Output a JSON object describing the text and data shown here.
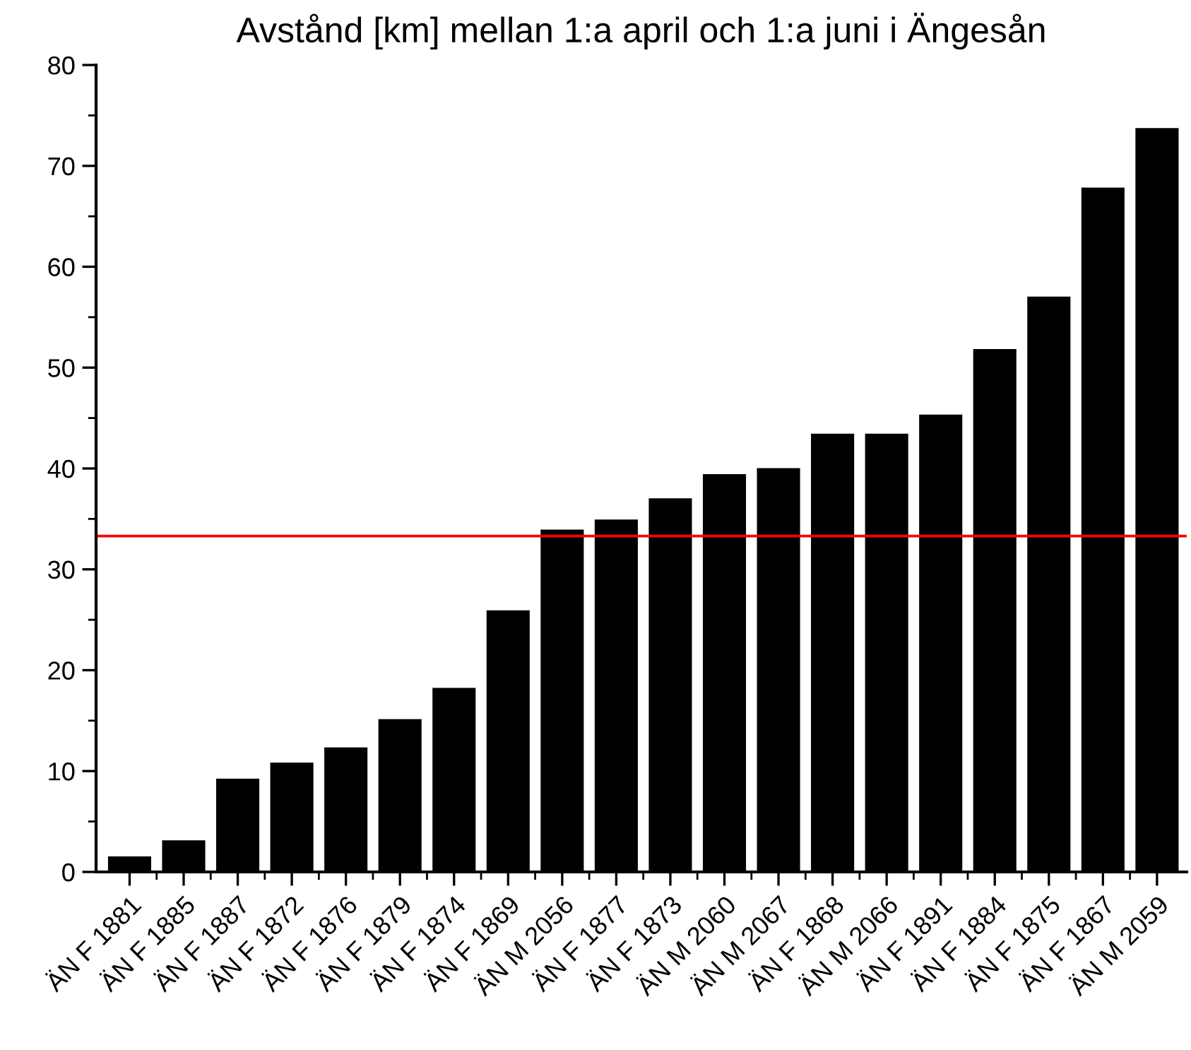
{
  "chart_data": {
    "type": "bar",
    "title": "Avstånd [km] mellan 1:a april och 1:a juni i Ängesån",
    "categories": [
      "ÄN F 1881",
      "ÄN F 1885",
      "ÄN F 1887",
      "ÄN F 1872",
      "ÄN F 1876",
      "ÄN F 1879",
      "ÄN F 1874",
      "ÄN F 1869",
      "ÄN M 2056",
      "ÄN F 1877",
      "ÄN F 1873",
      "ÄN M 2060",
      "ÄN M 2067",
      "ÄN F 1868",
      "ÄN M 2066",
      "ÄN F 1891",
      "ÄN F 1884",
      "ÄN F 1875",
      "ÄN F 1867",
      "ÄN M 2059"
    ],
    "values": [
      1.6,
      3.2,
      9.3,
      10.9,
      12.4,
      15.2,
      18.3,
      26.0,
      34.0,
      35.0,
      37.1,
      39.5,
      40.1,
      43.5,
      43.5,
      45.4,
      51.9,
      57.1,
      67.9,
      73.8
    ],
    "color": "#000000",
    "ylim": [
      0,
      80
    ],
    "yticks": [
      0,
      10,
      20,
      30,
      40,
      50,
      60,
      70,
      80
    ],
    "ref_lines": [
      {
        "axis": "y",
        "value": 33.3,
        "color": "#ff0000",
        "line_style": "solid"
      }
    ],
    "grid": false,
    "legend": false
  }
}
